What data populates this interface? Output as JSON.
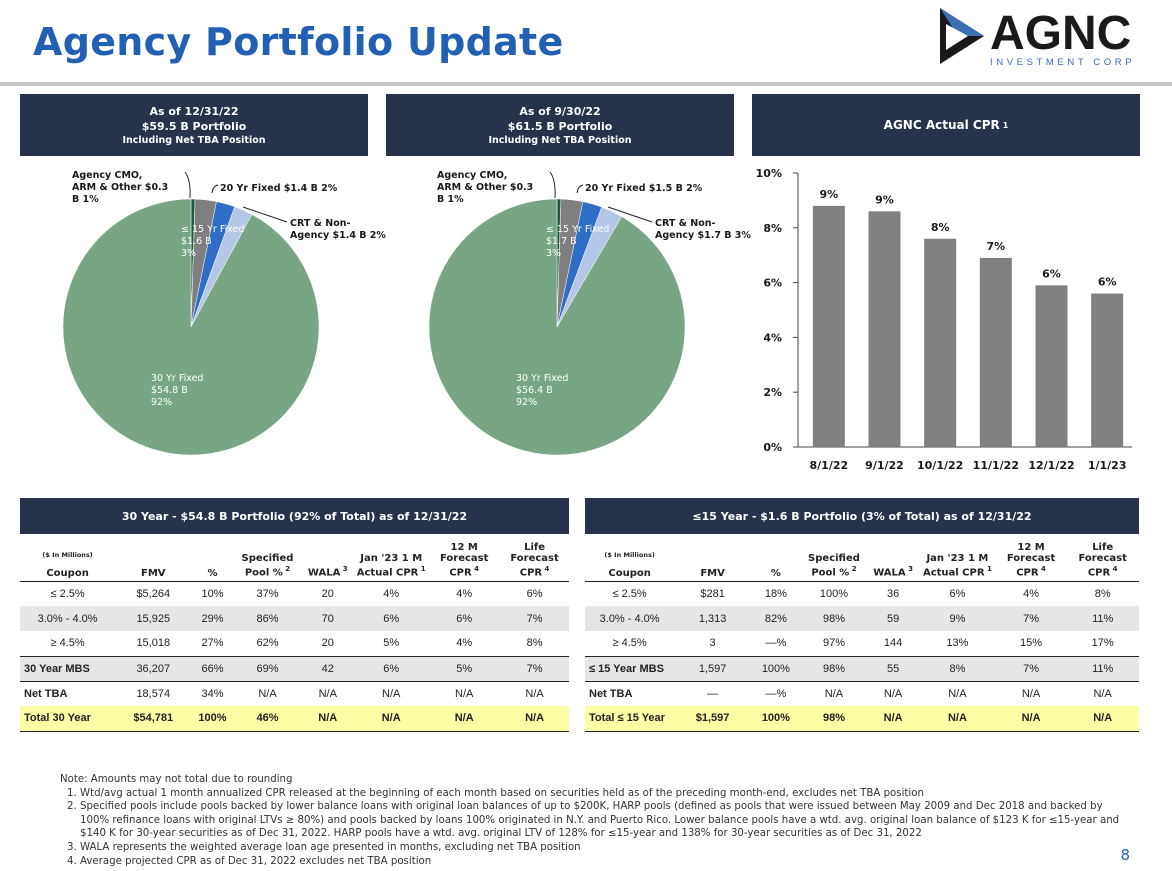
{
  "page": {
    "title": "Agency Portfolio Update",
    "page_number": "8"
  },
  "logo": {
    "name": "AGNC",
    "tagline": "INVESTMENT CORP"
  },
  "pie_left": {
    "header": [
      "As of 12/31/22",
      "$59.5 B Portfolio",
      "Including Net TBA Position"
    ],
    "labels": {
      "cmo": [
        "Agency CMO,",
        "ARM & Other $0.3",
        "B 1%"
      ],
      "yr20": "20 Yr Fixed $1.4 B 2%",
      "crt": [
        "CRT & Non-",
        "Agency $1.4 B 2%"
      ],
      "yr15": [
        "≤ 15 Yr Fixed",
        "$1.6 B",
        "3%"
      ],
      "yr30": [
        "30 Yr Fixed",
        "$54.8 B",
        "92%"
      ]
    },
    "slices": [
      {
        "name": "Agency CMO, ARM & Other",
        "value": 0.3,
        "pct": 1,
        "color": "#1b5e3c"
      },
      {
        "name": "≤ 15 Yr Fixed",
        "value": 1.6,
        "pct": 3,
        "color": "#7f7f7f"
      },
      {
        "name": "20 Yr Fixed",
        "value": 1.4,
        "pct": 2,
        "color": "#2e6ec6"
      },
      {
        "name": "CRT & Non-Agency",
        "value": 1.4,
        "pct": 2,
        "color": "#b4c7e7"
      },
      {
        "name": "30 Yr Fixed",
        "value": 54.8,
        "pct": 92,
        "color": "#78a584"
      }
    ]
  },
  "pie_right": {
    "header": [
      "As of 9/30/22",
      "$61.5 B Portfolio",
      "Including Net TBA Position"
    ],
    "labels": {
      "cmo": [
        "Agency CMO,",
        "ARM & Other $0.3",
        "B 1%"
      ],
      "yr20": "20 Yr Fixed $1.5 B 2%",
      "crt": [
        "CRT & Non-",
        "Agency $1.7 B 3%"
      ],
      "yr15": [
        "≤ 15 Yr Fixed",
        "$1.7 B",
        "3%"
      ],
      "yr30": [
        "30 Yr Fixed",
        "$56.4 B",
        "92%"
      ]
    },
    "slices": [
      {
        "name": "Agency CMO, ARM & Other",
        "value": 0.3,
        "pct": 1,
        "color": "#1b5e3c"
      },
      {
        "name": "≤ 15 Yr Fixed",
        "value": 1.7,
        "pct": 3,
        "color": "#7f7f7f"
      },
      {
        "name": "20 Yr Fixed",
        "value": 1.5,
        "pct": 2,
        "color": "#2e6ec6"
      },
      {
        "name": "CRT & Non-Agency",
        "value": 1.7,
        "pct": 3,
        "color": "#b4c7e7"
      },
      {
        "name": "30 Yr Fixed",
        "value": 56.4,
        "pct": 92,
        "color": "#78a584"
      }
    ]
  },
  "chart_data": [
    {
      "type": "pie",
      "title": "As of 12/31/22 $59.5 B Portfolio Including Net TBA Position",
      "categories": [
        "Agency CMO, ARM & Other",
        "≤ 15 Yr Fixed",
        "20 Yr Fixed",
        "CRT & Non-Agency",
        "30 Yr Fixed"
      ],
      "values": [
        0.3,
        1.6,
        1.4,
        1.4,
        54.8
      ]
    },
    {
      "type": "pie",
      "title": "As of 9/30/22 $61.5 B Portfolio Including Net TBA Position",
      "categories": [
        "Agency CMO, ARM & Other",
        "≤ 15 Yr Fixed",
        "20 Yr Fixed",
        "CRT & Non-Agency",
        "30 Yr Fixed"
      ],
      "values": [
        0.3,
        1.7,
        1.5,
        1.7,
        56.4
      ]
    },
    {
      "type": "bar",
      "title": "AGNC Actual CPR",
      "title_sup": "1",
      "categories": [
        "8/1/22",
        "9/1/22",
        "10/1/22",
        "11/1/22",
        "12/1/22",
        "1/1/23"
      ],
      "values": [
        8.8,
        8.6,
        7.6,
        6.9,
        5.9,
        5.6
      ],
      "data_labels": [
        "9%",
        "9%",
        "8%",
        "7%",
        "6%",
        "6%"
      ],
      "yticks": [
        "0%",
        "2%",
        "4%",
        "6%",
        "8%",
        "10%"
      ],
      "ylim": [
        0,
        10
      ],
      "bar_color": "#808080"
    }
  ],
  "table_left": {
    "title": "30 Year - $54.8 B Portfolio (92% of Total) as of 12/31/22",
    "units": "($ In Millions)",
    "columns": [
      {
        "label": "Coupon",
        "sup": ""
      },
      {
        "label": "FMV",
        "sup": ""
      },
      {
        "label": "%",
        "sup": ""
      },
      {
        "label": "Specified Pool %",
        "sup": "2"
      },
      {
        "label": "WALA",
        "sup": "3"
      },
      {
        "label": "Jan '23 1 M Actual CPR",
        "sup": "1"
      },
      {
        "label": "12 M Forecast CPR",
        "sup": "4"
      },
      {
        "label": "Life Forecast CPR",
        "sup": "4"
      }
    ],
    "rows": [
      [
        "≤ 2.5%",
        "$5,264",
        "10%",
        "37%",
        "20",
        "4%",
        "4%",
        "6%"
      ],
      [
        "3.0% - 4.0%",
        "15,925",
        "29%",
        "86%",
        "70",
        "6%",
        "6%",
        "7%"
      ],
      [
        "≥ 4.5%",
        "15,018",
        "27%",
        "62%",
        "20",
        "5%",
        "4%",
        "8%"
      ],
      [
        "30 Year MBS",
        "36,207",
        "66%",
        "69%",
        "42",
        "6%",
        "5%",
        "7%"
      ],
      [
        "Net TBA",
        "18,574",
        "34%",
        "N/A",
        "N/A",
        "N/A",
        "N/A",
        "N/A"
      ],
      [
        "Total 30 Year",
        "$54,781",
        "100%",
        "46%",
        "N/A",
        "N/A",
        "N/A",
        "N/A"
      ]
    ]
  },
  "table_right": {
    "title": "≤15 Year - $1.6 B Portfolio (3% of Total) as of 12/31/22",
    "units": "($ In Millions)",
    "columns": [
      {
        "label": "Coupon",
        "sup": ""
      },
      {
        "label": "FMV",
        "sup": ""
      },
      {
        "label": "%",
        "sup": ""
      },
      {
        "label": "Specified Pool %",
        "sup": "2"
      },
      {
        "label": "WALA",
        "sup": "3"
      },
      {
        "label": "Jan '23 1 M Actual CPR",
        "sup": "1"
      },
      {
        "label": "12 M Forecast CPR",
        "sup": "4"
      },
      {
        "label": "Life Forecast CPR",
        "sup": "4"
      }
    ],
    "rows": [
      [
        "≤ 2.5%",
        "$281",
        "18%",
        "100%",
        "36",
        "6%",
        "4%",
        "8%"
      ],
      [
        "3.0% - 4.0%",
        "1,313",
        "82%",
        "98%",
        "59",
        "9%",
        "7%",
        "11%"
      ],
      [
        "≥ 4.5%",
        "3",
        "—%",
        "97%",
        "144",
        "13%",
        "15%",
        "17%"
      ],
      [
        "≤ 15 Year MBS",
        "1,597",
        "100%",
        "98%",
        "55",
        "8%",
        "7%",
        "11%"
      ],
      [
        "Net TBA",
        "—",
        "—%",
        "N/A",
        "N/A",
        "N/A",
        "N/A",
        "N/A"
      ],
      [
        "Total ≤ 15 Year",
        "$1,597",
        "100%",
        "98%",
        "N/A",
        "N/A",
        "N/A",
        "N/A"
      ]
    ]
  },
  "notes": {
    "intro": "Note: Amounts may not total due to rounding",
    "items": [
      "Wtd/avg actual 1 month annualized CPR released at the beginning of each month based on securities held as of the preceding month-end, excludes net TBA position",
      "Specified pools include pools backed by lower balance loans with original loan balances of up to $200K, HARP pools (defined as pools that were issued between May 2009 and Dec 2018 and backed by 100% refinance loans with original LTVs ≥ 80%) and pools backed by loans 100% originated in N.Y. and Puerto Rico. Lower balance pools have a wtd. avg. original loan balance of $123 K for ≤15-year and $140 K for 30-year securities as of Dec 31, 2022. HARP pools have a wtd. avg. original LTV of 128% for ≤15-year and 138% for 30-year securities as of Dec 31, 2022",
      "WALA represents the weighted average loan age presented in months, excluding net TBA position",
      "Average projected CPR as of Dec 31, 2022 excludes net TBA position"
    ]
  }
}
